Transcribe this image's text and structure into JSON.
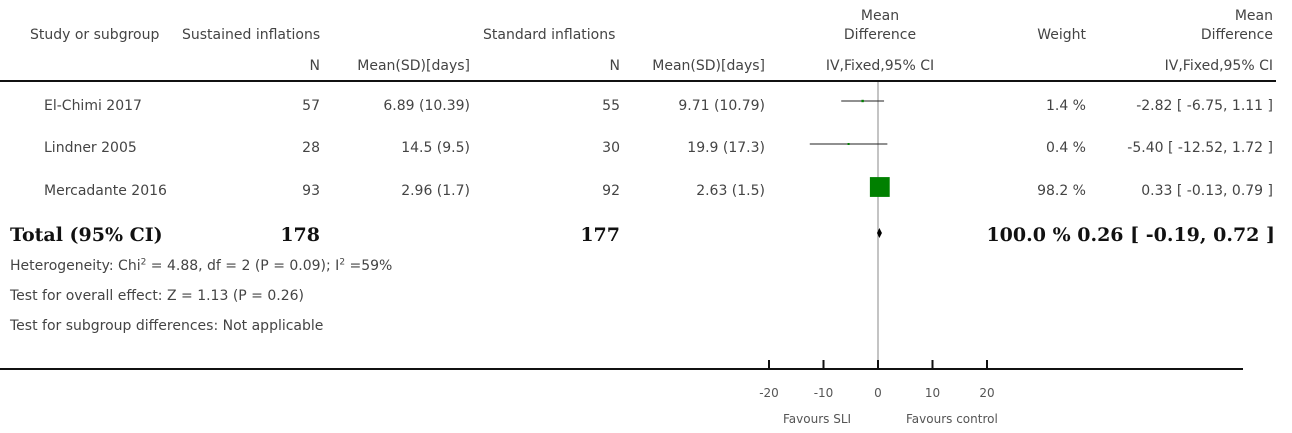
{
  "header": {
    "col_study": "Study or subgroup",
    "col_group1": "Sustained inflations",
    "col_group2": "Standard inflations",
    "col_md_line1": "Mean",
    "col_md_line2": "Difference",
    "col_weight": "Weight",
    "col_md2_line1": "Mean",
    "col_md2_line2": "Difference",
    "sub_n1": "N",
    "sub_mean1": "Mean(SD)[days]",
    "sub_n2": "N",
    "sub_mean2": "Mean(SD)[days]",
    "sub_method": "IV,Fixed,95% CI",
    "sub_method2": "IV,Fixed,95% CI"
  },
  "rows": [
    {
      "study": "El-Chimi 2017",
      "n1": "57",
      "mean1": "6.89 (10.39)",
      "n2": "55",
      "mean2": "9.71 (10.79)",
      "weight": "1.4 %",
      "ci": "-2.82 [ -6.75, 1.11 ]"
    },
    {
      "study": "Lindner 2005",
      "n1": "28",
      "mean1": "14.5 (9.5)",
      "n2": "30",
      "mean2": "19.9 (17.3)",
      "weight": "0.4 %",
      "ci": "-5.40 [ -12.52, 1.72 ]"
    },
    {
      "study": "Mercadante 2016",
      "n1": "93",
      "mean1": "2.96 (1.7)",
      "n2": "92",
      "mean2": "2.63 (1.5)",
      "weight": "98.2 %",
      "ci": "0.33 [ -0.13, 0.79 ]"
    }
  ],
  "total": {
    "label": "Total (95% CI)",
    "n1": "178",
    "n2": "177",
    "weight_ci": "100.0 % 0.26 [ -0.19, 0.72 ]"
  },
  "footnotes": {
    "heterogeneity_pre": "Heterogeneity: Chi",
    "heterogeneity_mid": " = 4.88, df = 2 (P = 0.09); I",
    "heterogeneity_post": " =59%",
    "sup": "2",
    "overall": "Test for overall effect: Z = 1.13 (P = 0.26)",
    "subgroup": "Test for subgroup differences: Not applicable"
  },
  "axis": {
    "favours_left": "Favours SLI",
    "favours_right": "Favours control"
  },
  "colors": {
    "study_square": "#008000",
    "rule": "#111111"
  },
  "chart_data": {
    "type": "forest",
    "xlim": [
      -20,
      20
    ],
    "ticks": [
      -20,
      -10,
      0,
      10,
      20
    ],
    "tick_labels": [
      "-20",
      "-10",
      "0",
      "10",
      "20"
    ],
    "studies": [
      {
        "name": "El-Chimi 2017",
        "md": -2.82,
        "lower": -6.75,
        "upper": 1.11,
        "weight": 1.4
      },
      {
        "name": "Lindner 2005",
        "md": -5.4,
        "lower": -12.52,
        "upper": 1.72,
        "weight": 0.4
      },
      {
        "name": "Mercadante 2016",
        "md": 0.33,
        "lower": -0.13,
        "upper": 0.79,
        "weight": 98.2
      }
    ],
    "pooled": {
      "md": 0.26,
      "lower": -0.19,
      "upper": 0.72
    }
  }
}
